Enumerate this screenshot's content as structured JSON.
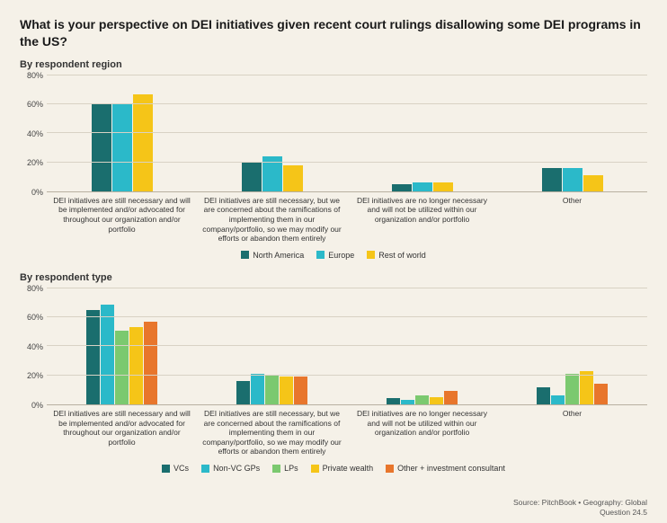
{
  "title": "What is your perspective on DEI initiatives given recent court rulings disallowing some DEI programs in the US?",
  "footer_line1": "Source: PitchBook  •  Geography: Global",
  "footer_line2": "Question 24.5",
  "categories": [
    "DEI initiatives are still necessary and will be implemented and/or advocated for throughout our organization and/or portfolio",
    "DEI initiatives are still necessary, but we are concerned about the ramifications of implementing them in our company/portfolio, so we may modify our efforts or abandon them entirely",
    "DEI initiatives are no longer necessary and will not be utilized within our organization and/or portfolio",
    "Other"
  ],
  "chart1": {
    "subtitle": "By respondent region",
    "ymax": 80,
    "ytick_step": 20,
    "yticks": [
      "0%",
      "20%",
      "40%",
      "60%",
      "80%"
    ],
    "grid_color": "#d8d2c4",
    "series": [
      {
        "label": "North America",
        "color": "#1a6e6e",
        "values": [
          60,
          20,
          5,
          16
        ]
      },
      {
        "label": "Europe",
        "color": "#2bb9c9",
        "values": [
          60,
          24,
          6,
          16
        ]
      },
      {
        "label": "Rest of world",
        "color": "#f5c518",
        "values": [
          67,
          18,
          6,
          11
        ]
      }
    ]
  },
  "chart2": {
    "subtitle": "By respondent type",
    "ymax": 80,
    "ytick_step": 20,
    "yticks": [
      "0%",
      "20%",
      "40%",
      "60%",
      "80%"
    ],
    "grid_color": "#d8d2c4",
    "series": [
      {
        "label": "VCs",
        "color": "#1a6e6e",
        "values": [
          65,
          16,
          4,
          12
        ]
      },
      {
        "label": "Non-VC GPs",
        "color": "#2bb9c9",
        "values": [
          69,
          21,
          3,
          6
        ]
      },
      {
        "label": "LPs",
        "color": "#7bc96f",
        "values": [
          51,
          20,
          6,
          21
        ]
      },
      {
        "label": "Private wealth",
        "color": "#f5c518",
        "values": [
          53,
          19,
          5,
          23
        ]
      },
      {
        "label": "Other + investment consultant",
        "color": "#e8762c",
        "values": [
          57,
          19,
          9,
          14
        ]
      }
    ]
  }
}
